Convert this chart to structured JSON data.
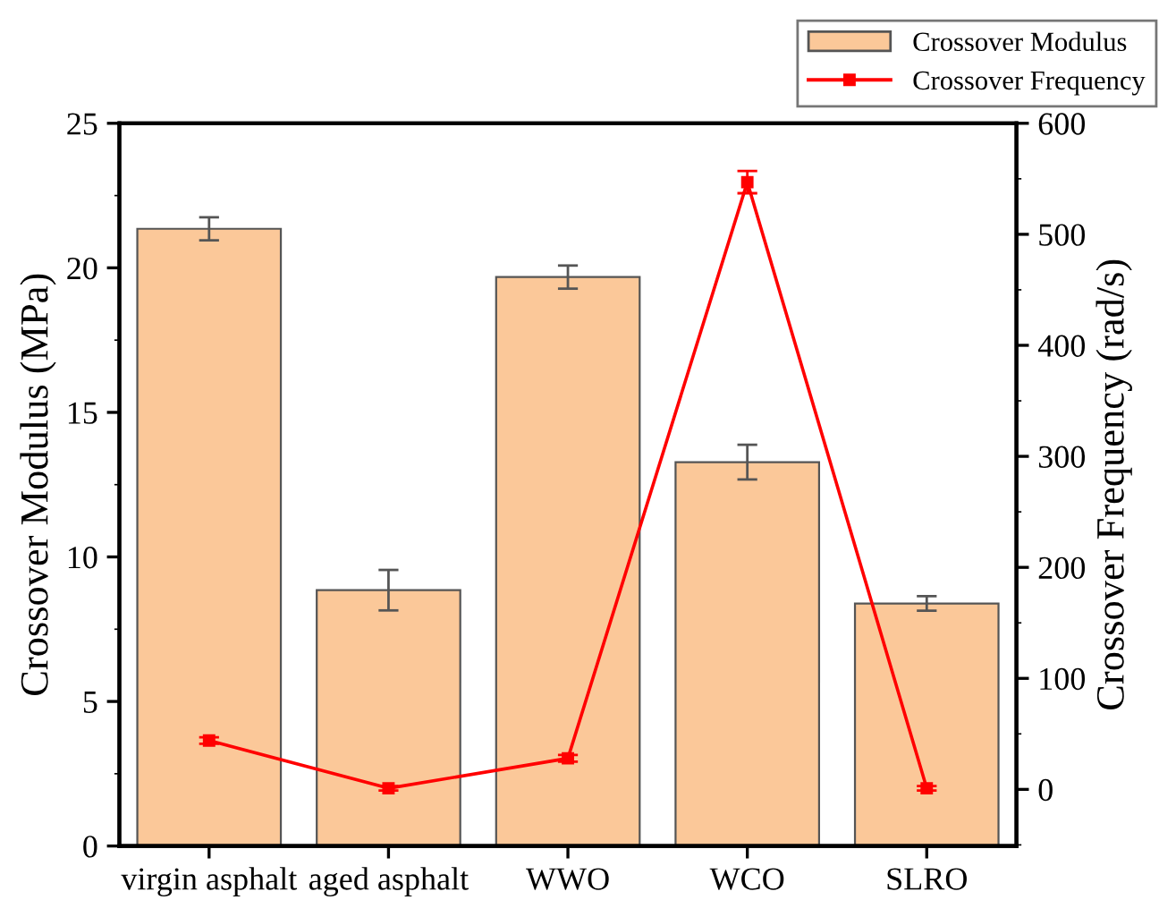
{
  "chart_data": {
    "type": "bar",
    "ylabel": "Crossover Modulus (MPa)",
    "y2label": "Crossover Frequency (rad/s)",
    "categories": [
      "virgin asphalt",
      "aged asphalt",
      "WWO",
      "WCO",
      "SLRO"
    ],
    "series": [
      {
        "name": "Crossover Modulus",
        "color": "#fbc899",
        "values": [
          21.35,
          8.85,
          19.68,
          13.28,
          8.39
        ],
        "errors": [
          0.4,
          0.7,
          0.4,
          0.6,
          0.25
        ]
      },
      {
        "name": "Crossover Frequency",
        "type": "line",
        "axis": "y2",
        "color": "#ff0000",
        "values": [
          44,
          1,
          28,
          547,
          1
        ],
        "errors": [
          3,
          2,
          3,
          10,
          2
        ],
        "marker": "square",
        "line_style": "solid"
      }
    ],
    "ylim": [
      0,
      25
    ],
    "yticks": [
      0,
      5,
      10,
      15,
      20,
      25
    ],
    "y2lim": [
      -51,
      600
    ],
    "y2ticks": [
      0,
      100,
      200,
      300,
      400,
      500,
      600
    ],
    "legend": "top right",
    "grid": false
  }
}
